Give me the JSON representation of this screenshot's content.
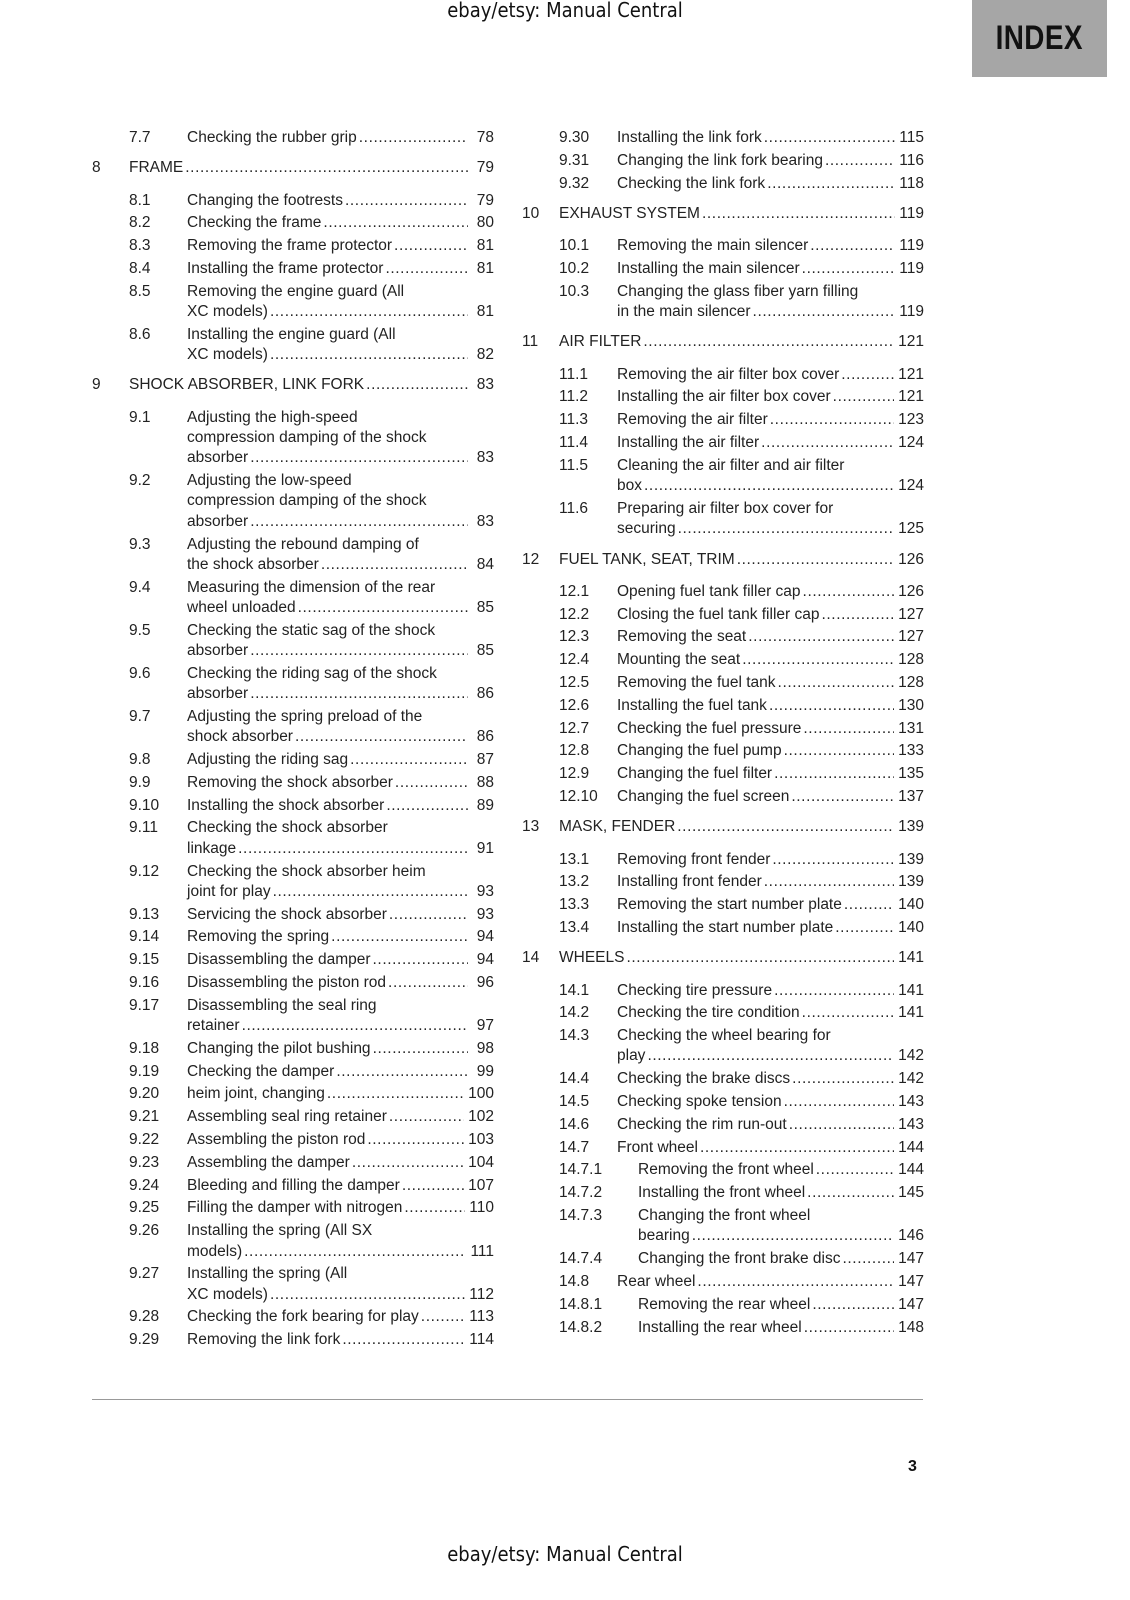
{
  "watermark": {
    "top": "ebay/etsy: Manual Central",
    "bottom": "ebay/etsy: Manual Central"
  },
  "tab_label": "INDEX",
  "page_number": "3",
  "columns": [
    [
      {
        "type": "section",
        "num": "7.7",
        "lines": [
          "Checking the rubber grip"
        ],
        "page": "78"
      },
      {
        "type": "chapter",
        "num": "8",
        "lines": [
          "FRAME"
        ],
        "page": "79"
      },
      {
        "type": "section",
        "num": "8.1",
        "lines": [
          "Changing the footrests"
        ],
        "page": "79"
      },
      {
        "type": "section",
        "num": "8.2",
        "lines": [
          "Checking the frame"
        ],
        "page": "80"
      },
      {
        "type": "section",
        "num": "8.3",
        "lines": [
          "Removing the frame protector"
        ],
        "page": "81"
      },
      {
        "type": "section",
        "num": "8.4",
        "lines": [
          "Installing the frame protector"
        ],
        "page": "81"
      },
      {
        "type": "section",
        "num": "8.5",
        "lines": [
          "Removing the engine guard (All",
          "XC models)"
        ],
        "page": "81"
      },
      {
        "type": "section",
        "num": "8.6",
        "lines": [
          "Installing the engine guard (All",
          "XC models)"
        ],
        "page": "82"
      },
      {
        "type": "chapter",
        "num": "9",
        "lines": [
          "SHOCK ABSORBER, LINK FORK"
        ],
        "page": "83"
      },
      {
        "type": "section",
        "num": "9.1",
        "lines": [
          "Adjusting the high-speed",
          "compression damping of the shock",
          "absorber"
        ],
        "page": "83"
      },
      {
        "type": "section",
        "num": "9.2",
        "lines": [
          "Adjusting the low-speed",
          "compression damping of the shock",
          "absorber"
        ],
        "page": "83"
      },
      {
        "type": "section",
        "num": "9.3",
        "lines": [
          "Adjusting the rebound damping of",
          "the shock absorber"
        ],
        "page": "84"
      },
      {
        "type": "section",
        "num": "9.4",
        "lines": [
          "Measuring the dimension of the rear",
          "wheel unloaded"
        ],
        "page": "85"
      },
      {
        "type": "section",
        "num": "9.5",
        "lines": [
          "Checking the static sag of the shock",
          "absorber"
        ],
        "page": "85"
      },
      {
        "type": "section",
        "num": "9.6",
        "lines": [
          "Checking the riding sag of the shock",
          "absorber"
        ],
        "page": "86"
      },
      {
        "type": "section",
        "num": "9.7",
        "lines": [
          "Adjusting the spring preload of the",
          "shock absorber"
        ],
        "page": "86"
      },
      {
        "type": "section",
        "num": "9.8",
        "lines": [
          "Adjusting the riding sag"
        ],
        "page": "87"
      },
      {
        "type": "section",
        "num": "9.9",
        "lines": [
          "Removing the shock absorber"
        ],
        "page": "88"
      },
      {
        "type": "section",
        "num": "9.10",
        "lines": [
          "Installing the shock absorber"
        ],
        "page": "89"
      },
      {
        "type": "section",
        "num": "9.11",
        "lines": [
          "Checking the shock absorber",
          "linkage"
        ],
        "page": "91"
      },
      {
        "type": "section",
        "num": "9.12",
        "lines": [
          "Checking the shock absorber heim",
          "joint for play"
        ],
        "page": "93"
      },
      {
        "type": "section",
        "num": "9.13",
        "lines": [
          "Servicing the shock absorber"
        ],
        "page": "93"
      },
      {
        "type": "section",
        "num": "9.14",
        "lines": [
          "Removing the spring"
        ],
        "page": "94"
      },
      {
        "type": "section",
        "num": "9.15",
        "lines": [
          "Disassembling the damper"
        ],
        "page": "94"
      },
      {
        "type": "section",
        "num": "9.16",
        "lines": [
          "Disassembling the piston rod"
        ],
        "page": "96"
      },
      {
        "type": "section",
        "num": "9.17",
        "lines": [
          "Disassembling the seal ring",
          "retainer"
        ],
        "page": "97"
      },
      {
        "type": "section",
        "num": "9.18",
        "lines": [
          "Changing the pilot bushing"
        ],
        "page": "98"
      },
      {
        "type": "section",
        "num": "9.19",
        "lines": [
          "Checking the damper"
        ],
        "page": "99"
      },
      {
        "type": "section",
        "num": "9.20",
        "lines": [
          "heim joint, changing"
        ],
        "page": "100"
      },
      {
        "type": "section",
        "num": "9.21",
        "lines": [
          "Assembling seal ring retainer"
        ],
        "page": "102"
      },
      {
        "type": "section",
        "num": "9.22",
        "lines": [
          "Assembling the piston rod"
        ],
        "page": "103"
      },
      {
        "type": "section",
        "num": "9.23",
        "lines": [
          "Assembling the damper"
        ],
        "page": "104"
      },
      {
        "type": "section",
        "num": "9.24",
        "lines": [
          "Bleeding and filling the damper"
        ],
        "page": "107"
      },
      {
        "type": "section",
        "num": "9.25",
        "lines": [
          "Filling the damper with nitrogen"
        ],
        "page": "110"
      },
      {
        "type": "section",
        "num": "9.26",
        "lines": [
          "Installing the spring (All SX",
          "models)"
        ],
        "page": "111"
      },
      {
        "type": "section",
        "num": "9.27",
        "lines": [
          "Installing the spring (All",
          "XC models)"
        ],
        "page": "112"
      },
      {
        "type": "section",
        "num": "9.28",
        "lines": [
          "Checking the fork bearing for play"
        ],
        "page": "113"
      },
      {
        "type": "section",
        "num": "9.29",
        "lines": [
          "Removing the link fork"
        ],
        "page": "114"
      }
    ],
    [
      {
        "type": "section",
        "num": "9.30",
        "lines": [
          "Installing the link fork"
        ],
        "page": "115"
      },
      {
        "type": "section",
        "num": "9.31",
        "lines": [
          "Changing the link fork bearing"
        ],
        "page": "116"
      },
      {
        "type": "section",
        "num": "9.32",
        "lines": [
          "Checking the link fork"
        ],
        "page": "118"
      },
      {
        "type": "chapter",
        "num": "10",
        "lines": [
          "EXHAUST SYSTEM"
        ],
        "page": "119"
      },
      {
        "type": "section",
        "num": "10.1",
        "lines": [
          "Removing the main silencer"
        ],
        "page": "119"
      },
      {
        "type": "section",
        "num": "10.2",
        "lines": [
          "Installing the main silencer"
        ],
        "page": "119"
      },
      {
        "type": "section",
        "num": "10.3",
        "lines": [
          "Changing the glass fiber yarn filling",
          "in the main silencer"
        ],
        "page": "119"
      },
      {
        "type": "chapter",
        "num": "11",
        "lines": [
          "AIR FILTER"
        ],
        "page": "121"
      },
      {
        "type": "section",
        "num": "11.1",
        "lines": [
          "Removing the air filter box cover"
        ],
        "page": "121"
      },
      {
        "type": "section",
        "num": "11.2",
        "lines": [
          "Installing the air filter box cover"
        ],
        "page": "121"
      },
      {
        "type": "section",
        "num": "11.3",
        "lines": [
          "Removing the air filter"
        ],
        "page": "123"
      },
      {
        "type": "section",
        "num": "11.4",
        "lines": [
          "Installing the air filter"
        ],
        "page": "124"
      },
      {
        "type": "section",
        "num": "11.5",
        "lines": [
          "Cleaning the air filter and air filter",
          "box"
        ],
        "page": "124"
      },
      {
        "type": "section",
        "num": "11.6",
        "lines": [
          "Preparing air filter box cover for",
          "securing"
        ],
        "page": "125"
      },
      {
        "type": "chapter",
        "num": "12",
        "lines": [
          "FUEL TANK, SEAT, TRIM"
        ],
        "page": "126"
      },
      {
        "type": "section",
        "num": "12.1",
        "lines": [
          "Opening fuel tank filler cap"
        ],
        "page": "126"
      },
      {
        "type": "section",
        "num": "12.2",
        "lines": [
          "Closing the fuel tank filler cap"
        ],
        "page": "127"
      },
      {
        "type": "section",
        "num": "12.3",
        "lines": [
          "Removing the seat"
        ],
        "page": "127"
      },
      {
        "type": "section",
        "num": "12.4",
        "lines": [
          "Mounting the seat"
        ],
        "page": "128"
      },
      {
        "type": "section",
        "num": "12.5",
        "lines": [
          "Removing the fuel tank"
        ],
        "page": "128"
      },
      {
        "type": "section",
        "num": "12.6",
        "lines": [
          "Installing the fuel tank"
        ],
        "page": "130"
      },
      {
        "type": "section",
        "num": "12.7",
        "lines": [
          "Checking the fuel pressure"
        ],
        "page": "131"
      },
      {
        "type": "section",
        "num": "12.8",
        "lines": [
          "Changing the fuel pump"
        ],
        "page": "133"
      },
      {
        "type": "section",
        "num": "12.9",
        "lines": [
          "Changing the fuel filter"
        ],
        "page": "135"
      },
      {
        "type": "section",
        "num": "12.10",
        "lines": [
          "Changing the fuel screen"
        ],
        "page": "137"
      },
      {
        "type": "chapter",
        "num": "13",
        "lines": [
          "MASK, FENDER"
        ],
        "page": "139"
      },
      {
        "type": "section",
        "num": "13.1",
        "lines": [
          "Removing front fender"
        ],
        "page": "139"
      },
      {
        "type": "section",
        "num": "13.2",
        "lines": [
          "Installing front fender"
        ],
        "page": "139"
      },
      {
        "type": "section",
        "num": "13.3",
        "lines": [
          "Removing the start number plate"
        ],
        "page": "140"
      },
      {
        "type": "section",
        "num": "13.4",
        "lines": [
          "Installing the start number plate"
        ],
        "page": "140"
      },
      {
        "type": "chapter",
        "num": "14",
        "lines": [
          "WHEELS"
        ],
        "page": "141"
      },
      {
        "type": "section",
        "num": "14.1",
        "lines": [
          "Checking tire pressure"
        ],
        "page": "141"
      },
      {
        "type": "section",
        "num": "14.2",
        "lines": [
          "Checking the tire condition"
        ],
        "page": "141"
      },
      {
        "type": "section",
        "num": "14.3",
        "lines": [
          "Checking the wheel bearing for",
          "play"
        ],
        "page": "142"
      },
      {
        "type": "section",
        "num": "14.4",
        "lines": [
          "Checking the brake discs"
        ],
        "page": "142"
      },
      {
        "type": "section",
        "num": "14.5",
        "lines": [
          "Checking spoke tension"
        ],
        "page": "143"
      },
      {
        "type": "section",
        "num": "14.6",
        "lines": [
          "Checking the rim run-out"
        ],
        "page": "143"
      },
      {
        "type": "section",
        "num": "14.7",
        "lines": [
          "Front wheel"
        ],
        "page": "144"
      },
      {
        "type": "subsection",
        "num": "14.7.1",
        "lines": [
          "Removing the front wheel"
        ],
        "page": "144"
      },
      {
        "type": "subsection",
        "num": "14.7.2",
        "lines": [
          "Installing the front wheel"
        ],
        "page": "145"
      },
      {
        "type": "subsection",
        "num": "14.7.3",
        "lines": [
          "Changing the front wheel",
          "bearing"
        ],
        "page": "146"
      },
      {
        "type": "subsection",
        "num": "14.7.4",
        "lines": [
          "Changing the front brake disc"
        ],
        "page": "147"
      },
      {
        "type": "section",
        "num": "14.8",
        "lines": [
          "Rear wheel"
        ],
        "page": "147"
      },
      {
        "type": "subsection",
        "num": "14.8.1",
        "lines": [
          "Removing the rear wheel"
        ],
        "page": "147"
      },
      {
        "type": "subsection",
        "num": "14.8.2",
        "lines": [
          "Installing the rear wheel"
        ],
        "page": "148"
      }
    ]
  ]
}
